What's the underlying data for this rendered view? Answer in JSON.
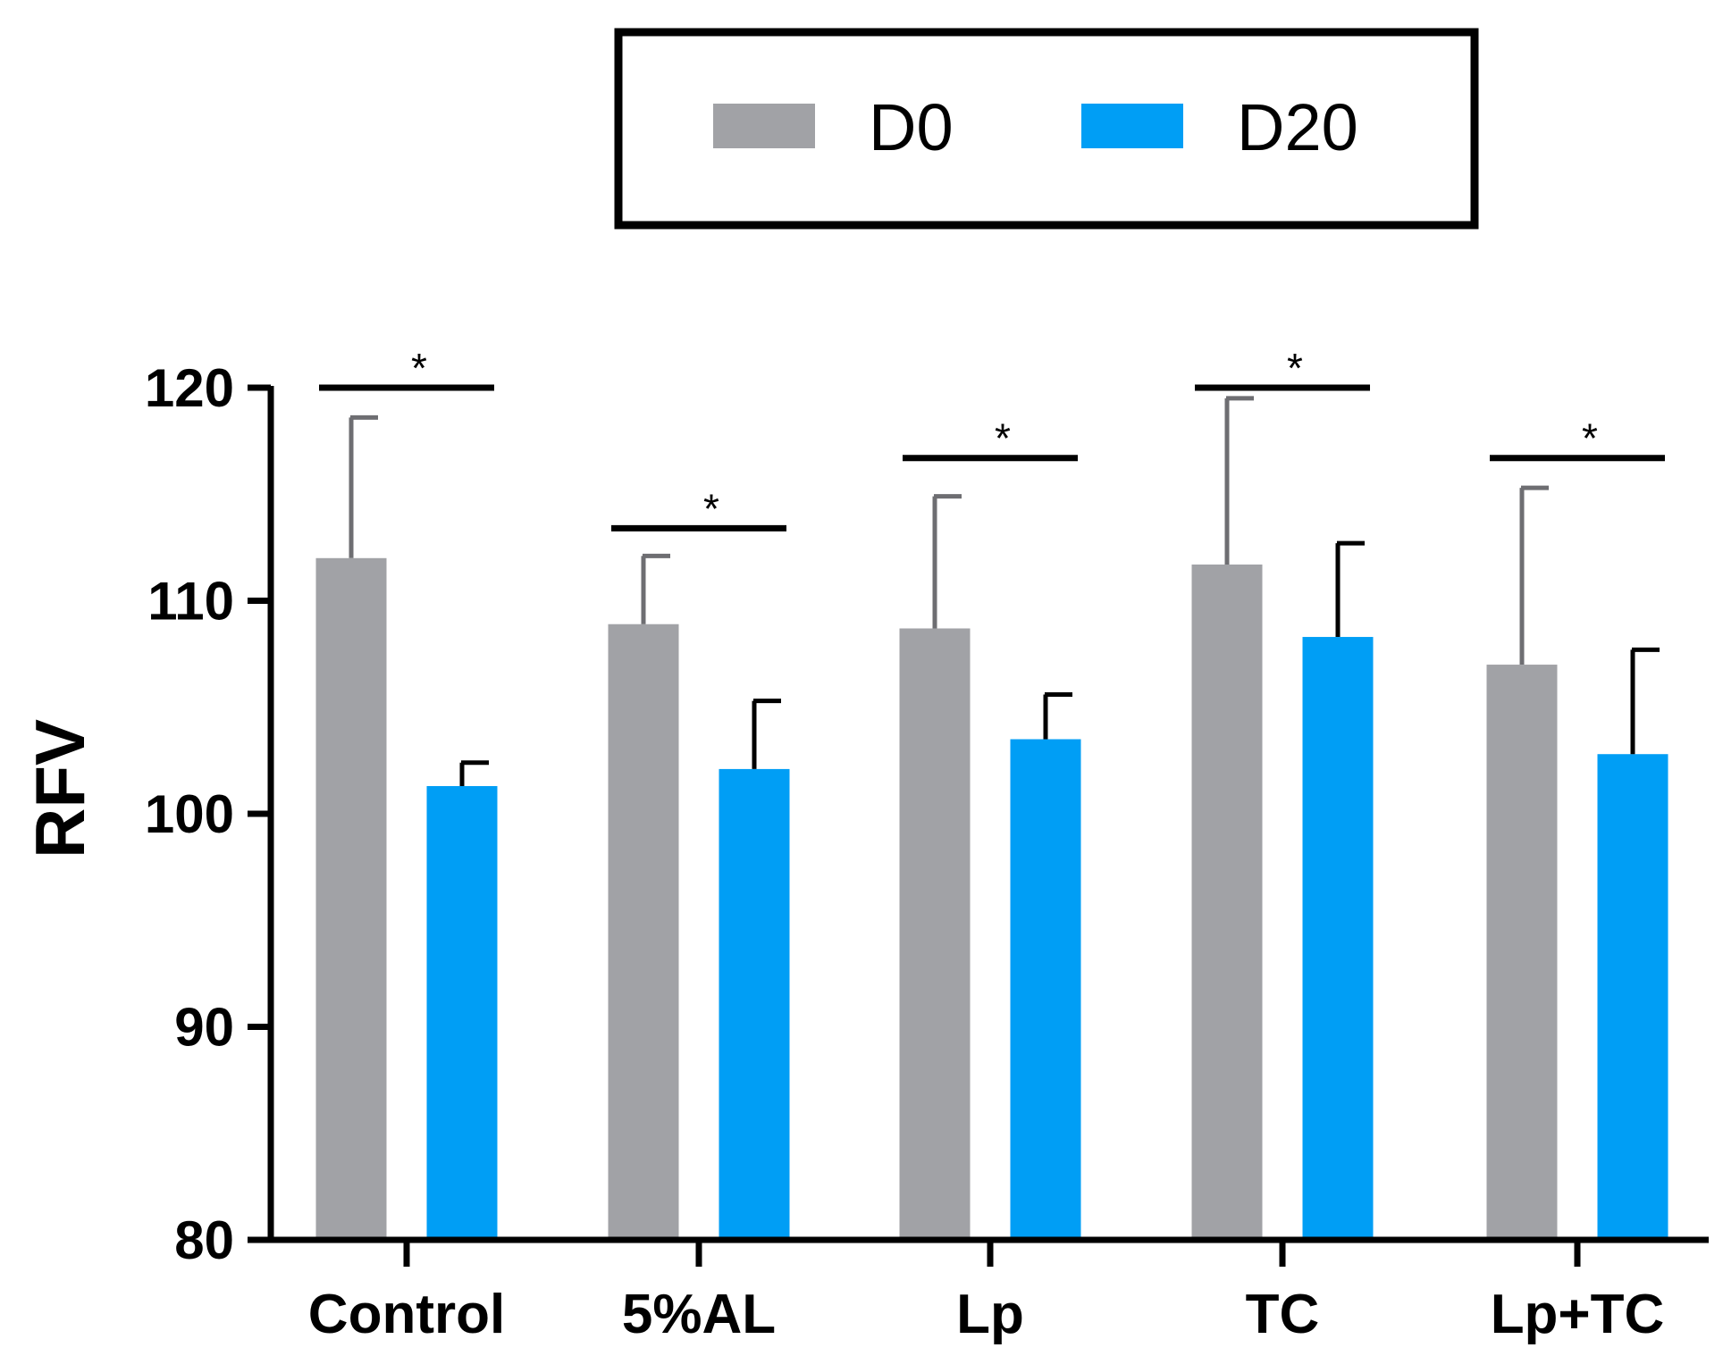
{
  "chart_data": {
    "type": "bar",
    "title": "",
    "xlabel": "",
    "ylabel": "RFV",
    "ylim": [
      80,
      120
    ],
    "yticks": [
      "80",
      "90",
      "100",
      "110",
      "120"
    ],
    "categories": [
      "Control",
      "5%AL",
      "Lp",
      "TC",
      "Lp+TC"
    ],
    "series": [
      {
        "name": "D0",
        "color": "#a1a2a6",
        "values": [
          112.0,
          108.9,
          108.7,
          111.7,
          107.0
        ],
        "errors": [
          6.6,
          3.2,
          6.2,
          7.8,
          8.3
        ]
      },
      {
        "name": "D20",
        "color": "#009ef5",
        "values": [
          101.3,
          102.1,
          103.5,
          108.3,
          102.8
        ],
        "errors": [
          1.1,
          3.2,
          2.1,
          4.4,
          4.9
        ]
      }
    ],
    "significance": [
      {
        "category": "Control",
        "y": 120.0,
        "label": "*"
      },
      {
        "category": "5%AL",
        "y": 113.4,
        "label": "*"
      },
      {
        "category": "Lp",
        "y": 116.7,
        "label": "*"
      },
      {
        "category": "TC",
        "y": 120.0,
        "label": "*"
      },
      {
        "category": "Lp+TC",
        "y": 116.7,
        "label": "*"
      }
    ],
    "legend": {
      "position": "top-center",
      "framed": true
    }
  }
}
